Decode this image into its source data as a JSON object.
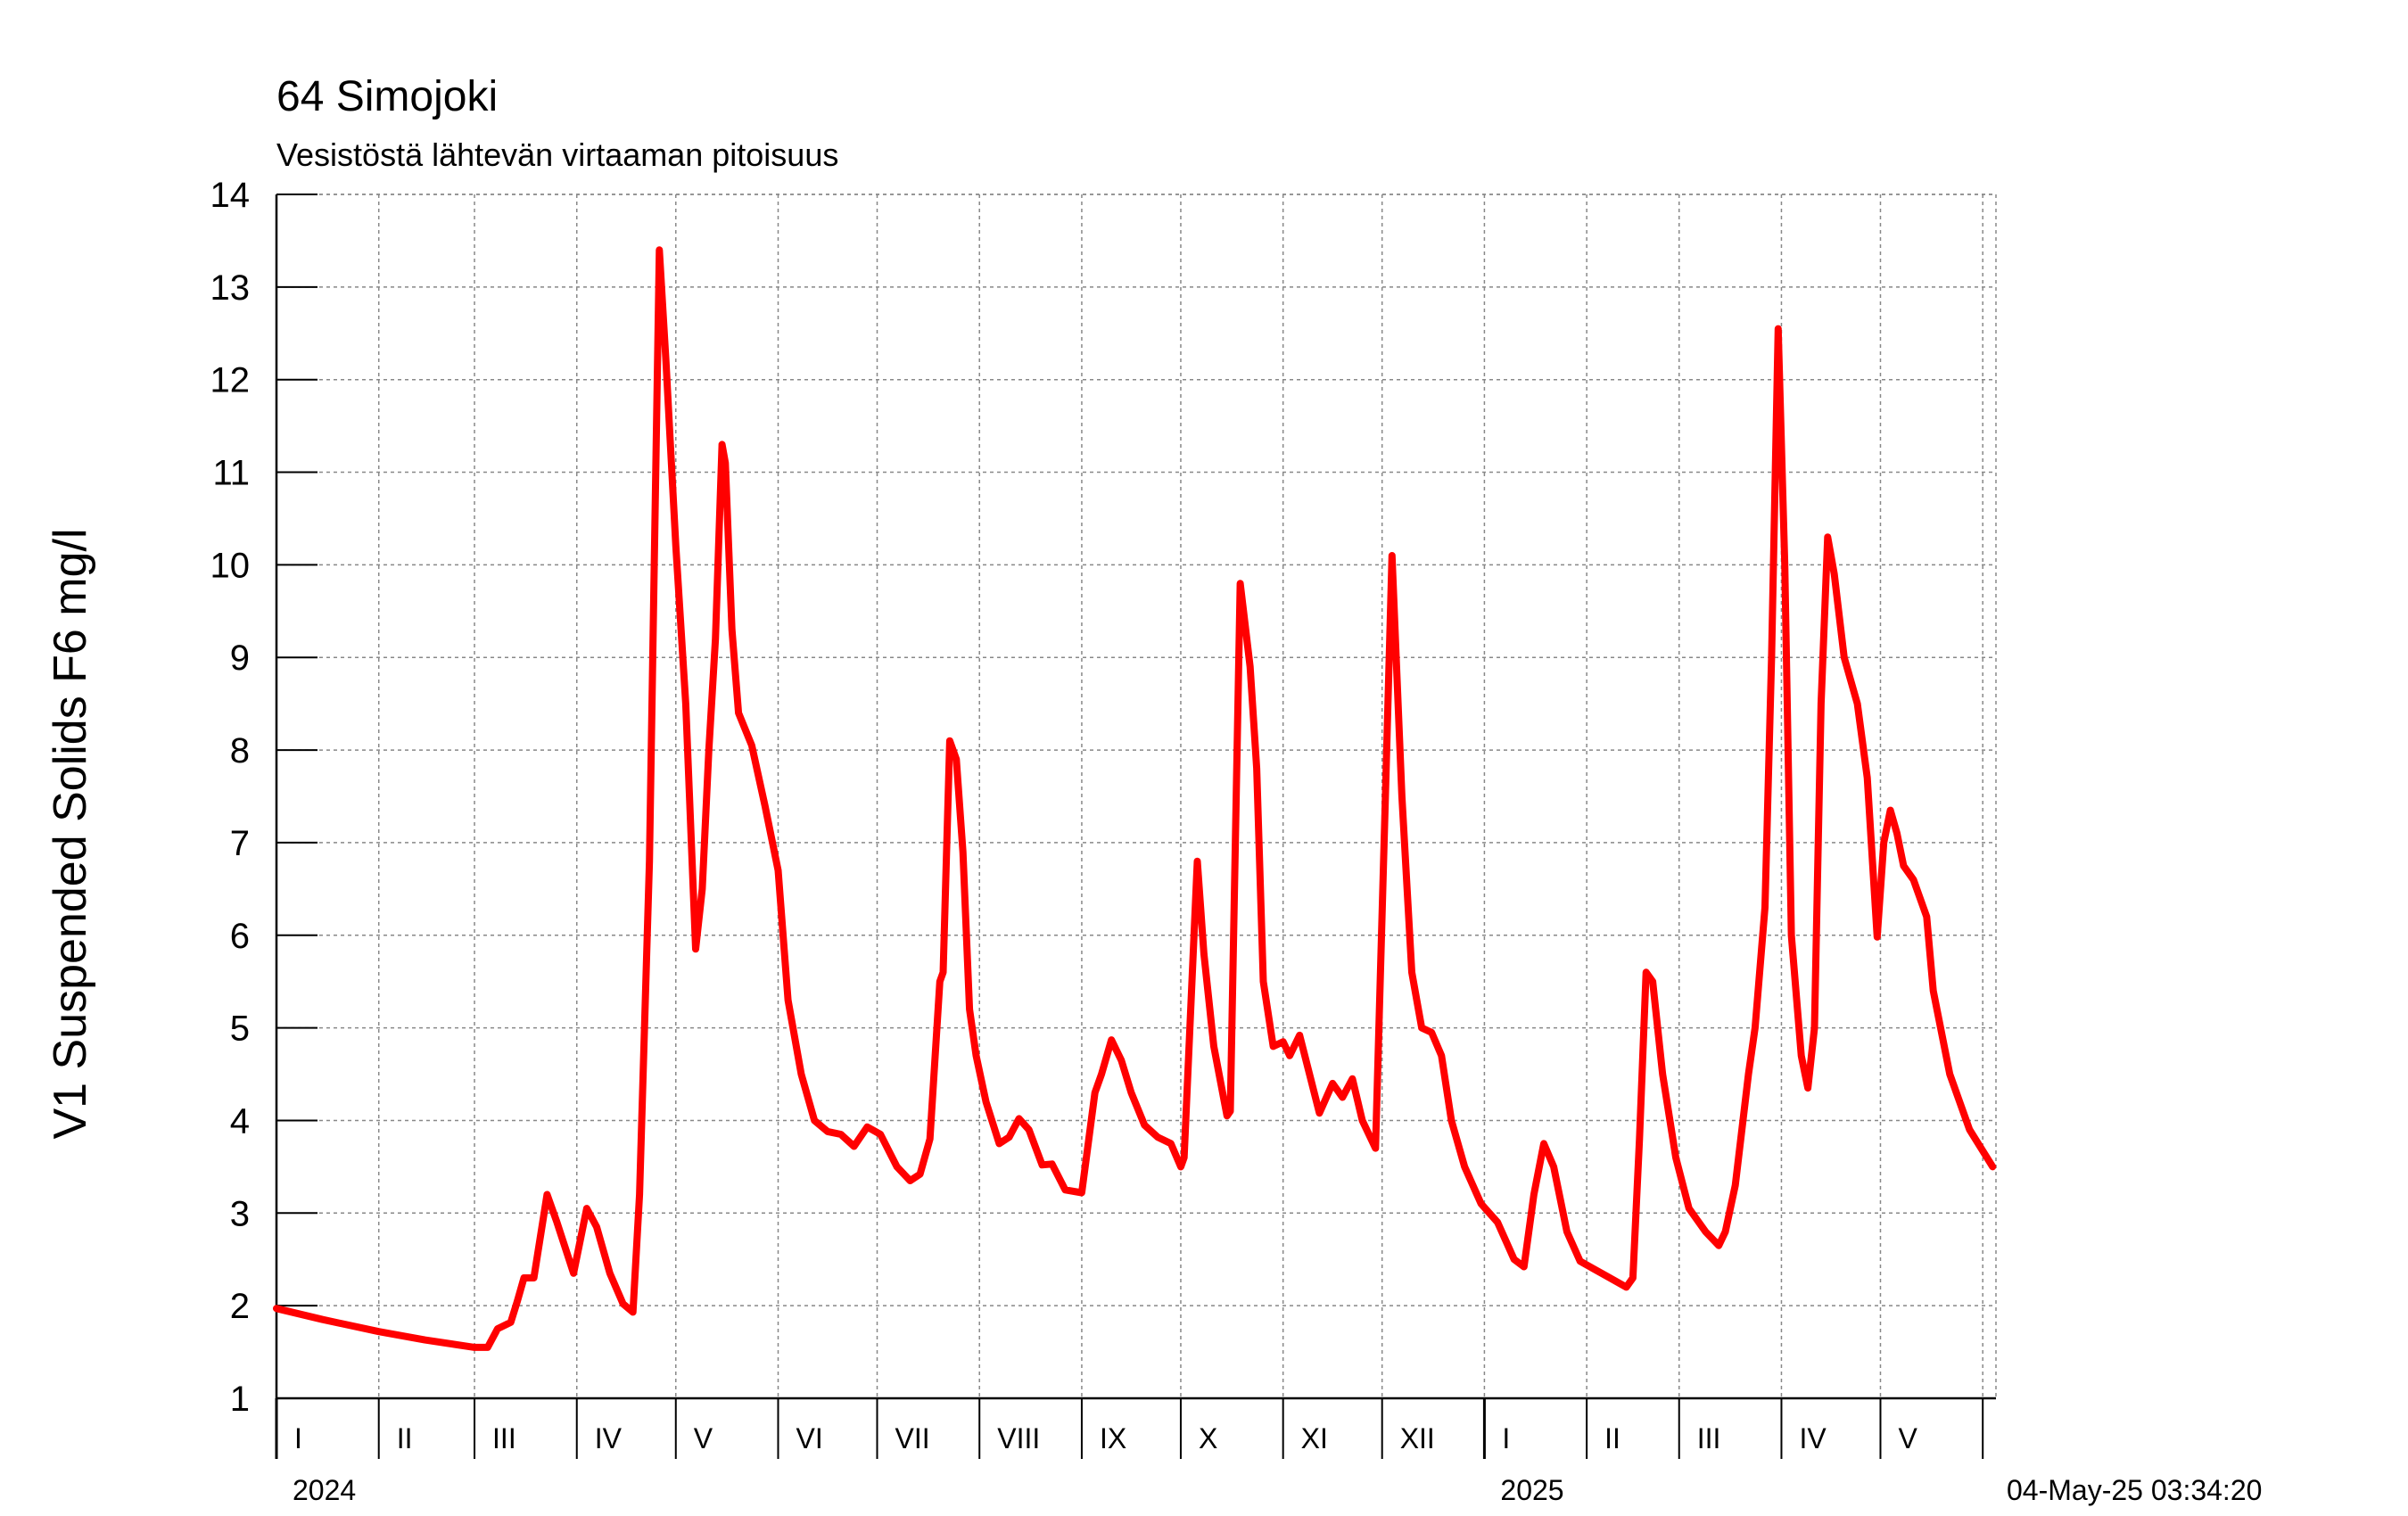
{
  "chart_data": {
    "type": "line",
    "title": "64 Simojoki",
    "subtitle": "Vesistöstä lähtevän virtaaman pitoisuus",
    "ylabel": "V1 Suspended Solids F6 mg/l",
    "ylim": [
      1,
      14
    ],
    "yticks": [
      1,
      2,
      3,
      4,
      5,
      6,
      7,
      8,
      9,
      10,
      11,
      12,
      13,
      14
    ],
    "xlim": [
      "2024-01-01",
      "2025-06-05"
    ],
    "month_labels": [
      "I",
      "II",
      "III",
      "IV",
      "V",
      "VI",
      "VII",
      "VIII",
      "IX",
      "X",
      "XI",
      "XII",
      "I",
      "II",
      "III",
      "IV",
      "V"
    ],
    "year_labels": [
      "2024",
      "2025"
    ],
    "grid": true,
    "series": [
      {
        "color": "#ff0000",
        "points": [
          [
            "2024-01-01",
            1.97
          ],
          [
            "2024-01-15",
            1.85
          ],
          [
            "2024-02-01",
            1.72
          ],
          [
            "2024-02-15",
            1.63
          ],
          [
            "2024-03-01",
            1.55
          ],
          [
            "2024-03-05",
            1.55
          ],
          [
            "2024-03-08",
            1.75
          ],
          [
            "2024-03-12",
            1.82
          ],
          [
            "2024-03-14",
            2.05
          ],
          [
            "2024-03-16",
            2.3
          ],
          [
            "2024-03-19",
            2.3
          ],
          [
            "2024-03-23",
            3.2
          ],
          [
            "2024-03-26",
            2.9
          ],
          [
            "2024-03-31",
            2.35
          ],
          [
            "2024-04-04",
            3.05
          ],
          [
            "2024-04-07",
            2.85
          ],
          [
            "2024-04-11",
            2.35
          ],
          [
            "2024-04-15",
            2.02
          ],
          [
            "2024-04-18",
            1.93
          ],
          [
            "2024-04-20",
            3.2
          ],
          [
            "2024-04-23",
            6.8
          ],
          [
            "2024-04-26",
            13.4
          ],
          [
            "2024-04-28",
            12.2
          ],
          [
            "2024-05-01",
            10.2
          ],
          [
            "2024-05-04",
            8.5
          ],
          [
            "2024-05-07",
            5.85
          ],
          [
            "2024-05-09",
            6.5
          ],
          [
            "2024-05-11",
            8.0
          ],
          [
            "2024-05-13",
            9.2
          ],
          [
            "2024-05-15",
            11.3
          ],
          [
            "2024-05-16",
            11.1
          ],
          [
            "2024-05-18",
            9.3
          ],
          [
            "2024-05-20",
            8.4
          ],
          [
            "2024-05-24",
            8.05
          ],
          [
            "2024-05-28",
            7.4
          ],
          [
            "2024-06-01",
            6.7
          ],
          [
            "2024-06-04",
            5.3
          ],
          [
            "2024-06-08",
            4.5
          ],
          [
            "2024-06-12",
            4.0
          ],
          [
            "2024-06-16",
            3.88
          ],
          [
            "2024-06-20",
            3.85
          ],
          [
            "2024-06-24",
            3.72
          ],
          [
            "2024-06-28",
            3.93
          ],
          [
            "2024-07-02",
            3.85
          ],
          [
            "2024-07-07",
            3.5
          ],
          [
            "2024-07-11",
            3.35
          ],
          [
            "2024-07-14",
            3.42
          ],
          [
            "2024-07-17",
            3.8
          ],
          [
            "2024-07-20",
            5.5
          ],
          [
            "2024-07-21",
            5.6
          ],
          [
            "2024-07-23",
            8.1
          ],
          [
            "2024-07-25",
            7.9
          ],
          [
            "2024-07-27",
            6.9
          ],
          [
            "2024-07-29",
            5.2
          ],
          [
            "2024-07-31",
            4.7
          ],
          [
            "2024-08-03",
            4.2
          ],
          [
            "2024-08-07",
            3.75
          ],
          [
            "2024-08-10",
            3.82
          ],
          [
            "2024-08-13",
            4.02
          ],
          [
            "2024-08-16",
            3.9
          ],
          [
            "2024-08-20",
            3.52
          ],
          [
            "2024-08-23",
            3.53
          ],
          [
            "2024-08-27",
            3.25
          ],
          [
            "2024-09-01",
            3.22
          ],
          [
            "2024-09-05",
            4.3
          ],
          [
            "2024-09-07",
            4.5
          ],
          [
            "2024-09-10",
            4.87
          ],
          [
            "2024-09-13",
            4.65
          ],
          [
            "2024-09-16",
            4.3
          ],
          [
            "2024-09-20",
            3.95
          ],
          [
            "2024-09-24",
            3.82
          ],
          [
            "2024-09-28",
            3.75
          ],
          [
            "2024-10-01",
            3.5
          ],
          [
            "2024-10-02",
            3.6
          ],
          [
            "2024-10-06",
            6.8
          ],
          [
            "2024-10-08",
            5.8
          ],
          [
            "2024-10-11",
            4.8
          ],
          [
            "2024-10-15",
            4.05
          ],
          [
            "2024-10-16",
            4.1
          ],
          [
            "2024-10-19",
            9.8
          ],
          [
            "2024-10-22",
            8.9
          ],
          [
            "2024-10-24",
            7.8
          ],
          [
            "2024-10-26",
            5.5
          ],
          [
            "2024-10-29",
            4.8
          ],
          [
            "2024-11-01",
            4.85
          ],
          [
            "2024-11-03",
            4.7
          ],
          [
            "2024-11-06",
            4.92
          ],
          [
            "2024-11-09",
            4.5
          ],
          [
            "2024-11-12",
            4.08
          ],
          [
            "2024-11-16",
            4.4
          ],
          [
            "2024-11-19",
            4.25
          ],
          [
            "2024-11-22",
            4.45
          ],
          [
            "2024-11-25",
            4.0
          ],
          [
            "2024-11-29",
            3.7
          ],
          [
            "2024-12-02",
            7.5
          ],
          [
            "2024-12-04",
            10.1
          ],
          [
            "2024-12-07",
            7.5
          ],
          [
            "2024-12-10",
            5.6
          ],
          [
            "2024-12-13",
            5.0
          ],
          [
            "2024-12-16",
            4.95
          ],
          [
            "2024-12-19",
            4.7
          ],
          [
            "2024-12-22",
            4.0
          ],
          [
            "2024-12-26",
            3.5
          ],
          [
            "2024-12-31",
            3.1
          ],
          [
            "2025-01-05",
            2.9
          ],
          [
            "2025-01-10",
            2.5
          ],
          [
            "2025-01-13",
            2.42
          ],
          [
            "2025-01-16",
            3.2
          ],
          [
            "2025-01-19",
            3.75
          ],
          [
            "2025-01-22",
            3.5
          ],
          [
            "2025-01-26",
            2.8
          ],
          [
            "2025-01-30",
            2.48
          ],
          [
            "2025-02-03",
            2.4
          ],
          [
            "2025-02-07",
            2.32
          ],
          [
            "2025-02-13",
            2.2
          ],
          [
            "2025-02-15",
            2.3
          ],
          [
            "2025-02-17",
            3.8
          ],
          [
            "2025-02-19",
            5.6
          ],
          [
            "2025-02-21",
            5.5
          ],
          [
            "2025-02-24",
            4.5
          ],
          [
            "2025-02-28",
            3.6
          ],
          [
            "2025-03-04",
            3.05
          ],
          [
            "2025-03-09",
            2.8
          ],
          [
            "2025-03-13",
            2.65
          ],
          [
            "2025-03-15",
            2.8
          ],
          [
            "2025-03-18",
            3.3
          ],
          [
            "2025-03-22",
            4.5
          ],
          [
            "2025-03-24",
            5.0
          ],
          [
            "2025-03-27",
            6.3
          ],
          [
            "2025-03-29",
            9.0
          ],
          [
            "2025-03-31",
            12.55
          ],
          [
            "2025-04-02",
            10.0
          ],
          [
            "2025-04-04",
            6.0
          ],
          [
            "2025-04-07",
            4.7
          ],
          [
            "2025-04-09",
            4.35
          ],
          [
            "2025-04-11",
            5.0
          ],
          [
            "2025-04-13",
            8.5
          ],
          [
            "2025-04-15",
            10.3
          ],
          [
            "2025-04-17",
            9.9
          ],
          [
            "2025-04-20",
            9.0
          ],
          [
            "2025-04-24",
            8.5
          ],
          [
            "2025-04-27",
            7.7
          ],
          [
            "2025-04-30",
            5.98
          ],
          [
            "2025-05-02",
            7.0
          ],
          [
            "2025-05-04",
            7.35
          ],
          [
            "2025-05-06",
            7.1
          ],
          [
            "2025-05-08",
            6.75
          ],
          [
            "2025-05-11",
            6.6
          ],
          [
            "2025-05-15",
            6.2
          ],
          [
            "2025-05-17",
            5.4
          ],
          [
            "2025-05-22",
            4.5
          ],
          [
            "2025-05-28",
            3.9
          ],
          [
            "2025-06-04",
            3.5
          ]
        ]
      }
    ]
  },
  "timestamp": "04-May-25 03:34:20",
  "colors": {
    "line": "#ff0000",
    "grid": "#888888",
    "axis": "#000000"
  }
}
